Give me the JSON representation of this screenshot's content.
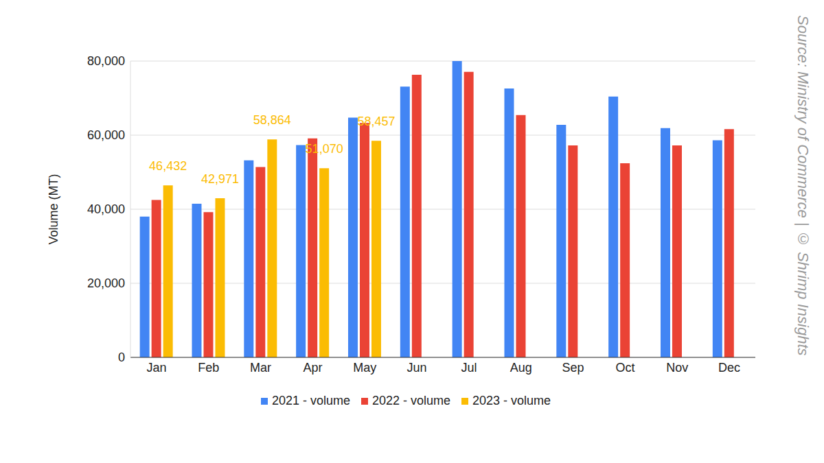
{
  "chart_data": {
    "type": "bar",
    "y_label": "Volume (MT)",
    "source": "Source: Ministry of Commerce | © Shrimp Insights",
    "categories": [
      "Jan",
      "Feb",
      "Mar",
      "Apr",
      "May",
      "Jun",
      "Jul",
      "Aug",
      "Sep",
      "Oct",
      "Nov",
      "Dec"
    ],
    "series": [
      {
        "name": "2021 - volume",
        "color": "#4285f4",
        "values": [
          38000,
          41500,
          53200,
          57300,
          64700,
          73100,
          80000,
          72600,
          62800,
          70400,
          61900,
          58600
        ]
      },
      {
        "name": "2022 - volume",
        "color": "#ea4335",
        "values": [
          42500,
          39200,
          51400,
          59100,
          63300,
          76300,
          77100,
          65400,
          57200,
          52400,
          57200,
          61600
        ]
      },
      {
        "name": "2023 - volume",
        "color": "#fbbc04",
        "data_labels": true,
        "values": [
          46432,
          42971,
          58864,
          51070,
          58457,
          null,
          null,
          null,
          null,
          null,
          null,
          null
        ],
        "value_labels": [
          "46,432",
          "42,971",
          "58,864",
          "51,070",
          "58,457",
          null,
          null,
          null,
          null,
          null,
          null,
          null
        ]
      }
    ],
    "ylim": [
      0,
      80000
    ],
    "yticks": [
      0,
      {
        "value": 20000,
        "label": "20,000"
      },
      {
        "value": 40000,
        "label": "40,000"
      },
      {
        "value": 60000,
        "label": "60,000"
      },
      {
        "value": 80000,
        "label": "80,000"
      }
    ],
    "grid": true,
    "legend": "bottom"
  }
}
